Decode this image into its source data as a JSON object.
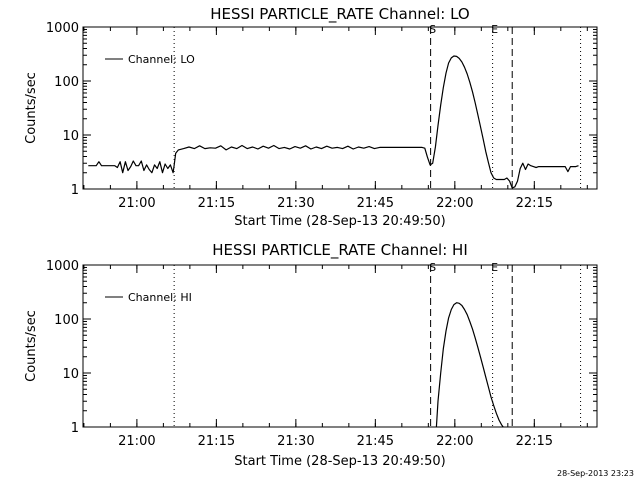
{
  "footer_timestamp": "28-Sep-2013 23:23",
  "chart_data": [
    {
      "type": "line",
      "title": "HESSI PARTICLE_RATE Channel: LO",
      "xlabel": "Start Time (28-Sep-13 20:49:50)",
      "ylabel": "Counts/sec",
      "y_scale": "log",
      "ylim": [
        1,
        1000
      ],
      "x_unit": "minutes since 20:49:50",
      "xlim": [
        0,
        97
      ],
      "xticks": [
        {
          "t": 10.17,
          "label": "21:00"
        },
        {
          "t": 25.17,
          "label": "21:15"
        },
        {
          "t": 40.17,
          "label": "21:30"
        },
        {
          "t": 55.17,
          "label": "21:45"
        },
        {
          "t": 70.17,
          "label": "22:00"
        },
        {
          "t": 85.17,
          "label": "22:15"
        }
      ],
      "yticks": [
        {
          "v": 1,
          "label": "1"
        },
        {
          "v": 10,
          "label": "10"
        },
        {
          "v": 100,
          "label": "100"
        },
        {
          "v": 1000,
          "label": "1000"
        }
      ],
      "grid": false,
      "legend": {
        "label": "Channel: LO",
        "position": "top-left"
      },
      "markers": [
        {
          "t": 17.2,
          "style": "dotted",
          "label": ""
        },
        {
          "t": 65.6,
          "style": "dashed",
          "label": "S"
        },
        {
          "t": 77.3,
          "style": "dotted",
          "label": "E"
        },
        {
          "t": 81.0,
          "style": "dashed",
          "label": ""
        },
        {
          "t": 93.9,
          "style": "dotted",
          "label": ""
        }
      ],
      "series": [
        {
          "name": "Channel: LO",
          "x": [
            1.0,
            2.5,
            3.0,
            3.5,
            4.0,
            4.5,
            5.0,
            5.5,
            6.0,
            6.5,
            7.0,
            7.5,
            8.0,
            8.5,
            9.0,
            9.5,
            10.0,
            10.5,
            11.0,
            11.5,
            12.0,
            12.5,
            13.0,
            13.5,
            14.0,
            14.5,
            15.0,
            15.5,
            16.0,
            16.5,
            17.0,
            17.2,
            17.5,
            18.0,
            19.0,
            20.0,
            21.0,
            22.0,
            23.0,
            24.0,
            25.0,
            26.0,
            27.0,
            28.0,
            29.0,
            30.0,
            31.0,
            32.0,
            33.0,
            34.0,
            35.0,
            36.0,
            37.0,
            38.0,
            39.0,
            40.0,
            41.0,
            42.0,
            43.0,
            44.0,
            45.0,
            46.0,
            47.0,
            48.0,
            49.0,
            50.0,
            51.0,
            52.0,
            53.0,
            54.0,
            55.0,
            56.0,
            57.0,
            58.0,
            59.0,
            60.0,
            61.0,
            62.0,
            63.0,
            64.0,
            64.5,
            65.0,
            65.5,
            66.0,
            66.5,
            67.0,
            67.5,
            68.0,
            68.5,
            69.0,
            69.5,
            70.0,
            70.5,
            71.0,
            71.5,
            72.0,
            72.5,
            73.0,
            73.5,
            74.0,
            74.5,
            75.0,
            75.5,
            76.0,
            76.5,
            77.0,
            77.5,
            78.0,
            78.5,
            79.0,
            79.5,
            80.0,
            80.5,
            81.0,
            81.5,
            82.0,
            82.5,
            83.0,
            83.5,
            84.0,
            84.5,
            85.0,
            85.5,
            86.0,
            86.5,
            87.0,
            87.5,
            88.0,
            88.5,
            89.0,
            89.5,
            90.0,
            90.5,
            91.0,
            91.5,
            92.0,
            92.5,
            93.0,
            93.5
          ],
          "y": [
            2.7,
            2.7,
            3.2,
            2.7,
            2.7,
            2.7,
            2.7,
            2.7,
            2.7,
            2.5,
            3.2,
            2.0,
            3.2,
            2.2,
            2.6,
            3.3,
            2.7,
            2.7,
            3.3,
            2.2,
            2.8,
            2.3,
            2.0,
            2.8,
            2.4,
            3.2,
            2.0,
            2.9,
            2.4,
            2.8,
            2.0,
            2.7,
            4.6,
            5.3,
            5.6,
            6.0,
            5.6,
            6.3,
            5.6,
            5.8,
            5.7,
            6.3,
            5.3,
            6.0,
            5.6,
            6.4,
            5.6,
            6.0,
            5.5,
            6.2,
            5.7,
            6.4,
            5.6,
            5.9,
            5.5,
            6.1,
            5.7,
            6.3,
            5.5,
            6.0,
            5.6,
            6.2,
            5.7,
            5.9,
            5.6,
            6.2,
            5.5,
            6.0,
            5.7,
            6.1,
            5.6,
            5.9,
            5.9,
            5.9,
            5.9,
            5.9,
            5.9,
            5.9,
            5.9,
            5.9,
            5.7,
            3.9,
            2.8,
            3.0,
            6.0,
            15.0,
            36.0,
            75.0,
            140.0,
            215.0,
            268.0,
            290.0,
            285.0,
            262.0,
            225.0,
            180.0,
            135.0,
            95.0,
            63.0,
            40.0,
            24.0,
            14.5,
            8.5,
            5.0,
            3.1,
            2.0,
            1.6,
            1.5,
            1.5,
            1.5,
            1.5,
            1.6,
            1.4,
            1.05,
            1.1,
            1.4,
            2.4,
            3.0,
            2.3,
            2.9,
            2.7,
            2.6,
            2.5,
            2.6,
            2.6,
            2.6,
            2.6,
            2.6,
            2.6,
            2.6,
            2.6,
            2.6,
            2.6,
            2.6,
            2.1,
            2.6,
            2.6,
            2.6,
            2.7
          ]
        }
      ]
    },
    {
      "type": "line",
      "title": "HESSI PARTICLE_RATE Channel: HI",
      "xlabel": "Start Time (28-Sep-13 20:49:50)",
      "ylabel": "Counts/sec",
      "y_scale": "log",
      "ylim": [
        1,
        1000
      ],
      "x_unit": "minutes since 20:49:50",
      "xlim": [
        0,
        97
      ],
      "xticks": [
        {
          "t": 10.17,
          "label": "21:00"
        },
        {
          "t": 25.17,
          "label": "21:15"
        },
        {
          "t": 40.17,
          "label": "21:30"
        },
        {
          "t": 55.17,
          "label": "21:45"
        },
        {
          "t": 70.17,
          "label": "22:00"
        },
        {
          "t": 85.17,
          "label": "22:15"
        }
      ],
      "yticks": [
        {
          "v": 1,
          "label": "1"
        },
        {
          "v": 10,
          "label": "10"
        },
        {
          "v": 100,
          "label": "100"
        },
        {
          "v": 1000,
          "label": "1000"
        }
      ],
      "grid": false,
      "legend": {
        "label": "Channel: HI",
        "position": "top-left"
      },
      "markers": [
        {
          "t": 17.2,
          "style": "dotted",
          "label": ""
        },
        {
          "t": 65.6,
          "style": "dashed",
          "label": "S"
        },
        {
          "t": 77.3,
          "style": "dotted",
          "label": "E"
        },
        {
          "t": 81.0,
          "style": "dashed",
          "label": ""
        },
        {
          "t": 93.9,
          "style": "dotted",
          "label": ""
        }
      ],
      "series": [
        {
          "name": "Channel: HI",
          "x": [
            66.7,
            67.0,
            67.5,
            68.0,
            68.5,
            69.0,
            69.5,
            70.0,
            70.5,
            71.0,
            71.5,
            72.0,
            72.5,
            73.0,
            73.5,
            74.0,
            74.5,
            75.0,
            75.5,
            76.0,
            76.5,
            77.0,
            77.5,
            78.0,
            78.5,
            79.0,
            79.3
          ],
          "y": [
            1.0,
            3.0,
            10.0,
            28.0,
            60.0,
            105.0,
            150.0,
            185.0,
            200.0,
            195.0,
            178.0,
            150.0,
            120.0,
            90.0,
            65.0,
            45.0,
            30.0,
            20.0,
            13.0,
            8.5,
            5.5,
            3.6,
            2.5,
            1.8,
            1.35,
            1.1,
            1.0
          ]
        }
      ]
    }
  ]
}
